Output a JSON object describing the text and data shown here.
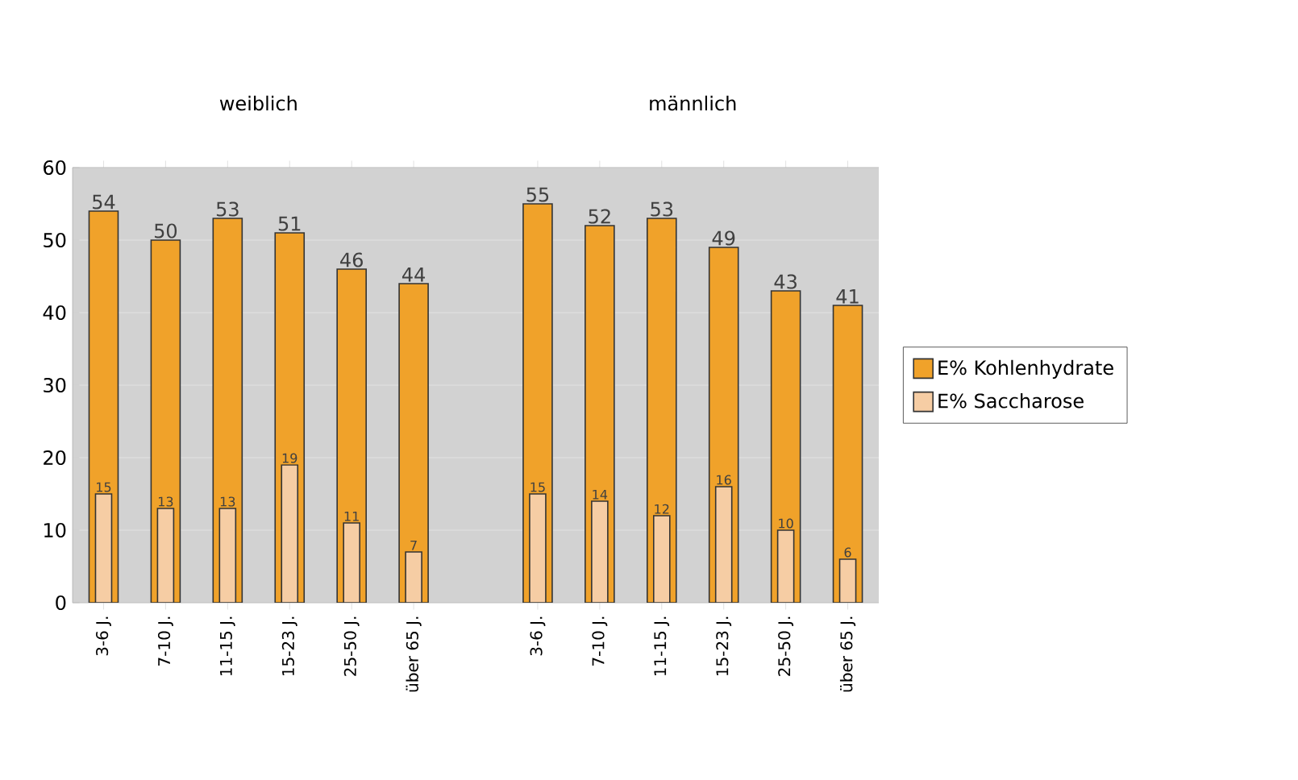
{
  "chart_data": {
    "type": "bar",
    "categories": [
      "3-6 J.",
      "7-10 J.",
      "11-15 J.",
      "15-23 J.",
      "25-50 J.",
      "über 65 J.",
      null,
      "3-6 J.",
      "7-10 J.",
      "11-15 J.",
      "15-23 J.",
      "25-50 J.",
      "über 65 J."
    ],
    "series": [
      {
        "name": "E% Kohlenhydrate",
        "color": "#f0a22a",
        "values": [
          54,
          50,
          53,
          51,
          46,
          44,
          null,
          55,
          52,
          53,
          49,
          43,
          41
        ]
      },
      {
        "name": "E% Saccharose",
        "color": "#f6cda4",
        "values": [
          15,
          13,
          13,
          19,
          11,
          7,
          null,
          15,
          14,
          12,
          16,
          10,
          6
        ]
      }
    ],
    "annotations": [
      "weiblich",
      "männlich"
    ],
    "ylim": [
      0,
      60
    ],
    "yticks": [
      0,
      10,
      20,
      30,
      40,
      50,
      60
    ],
    "grid": "y",
    "legend": "right",
    "data_labels": true
  }
}
